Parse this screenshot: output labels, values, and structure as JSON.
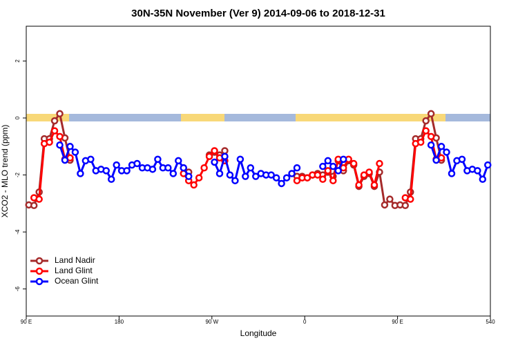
{
  "chart_data": {
    "type": "line",
    "title": "30N-35N November (Ver 9)   2014-09-06 to 2018-12-31",
    "xlabel": "Longitude",
    "ylabel": "XCO2 - MLO trend (ppm)",
    "x": [
      92.5,
      97.5,
      102.5,
      107.5,
      112.5,
      117.5,
      122.5,
      127.5,
      132.5,
      137.5,
      142.5,
      147.5,
      152.5,
      157.5,
      162.5,
      167.5,
      172.5,
      177.5,
      182.5,
      187.5,
      192.5,
      197.5,
      202.5,
      207.5,
      212.5,
      217.5,
      222.5,
      227.5,
      232.5,
      237.5,
      242.5,
      247.5,
      252.5,
      257.5,
      262.5,
      267.5,
      272.5,
      277.5,
      282.5,
      287.5,
      292.5,
      297.5,
      302.5,
      307.5,
      312.5,
      317.5,
      322.5,
      327.5,
      332.5,
      337.5,
      342.5,
      347.5,
      352.5,
      357.5,
      362.5,
      367.5,
      372.5,
      377.5,
      382.5,
      387.5,
      392.5,
      397.5,
      402.5,
      407.5,
      412.5,
      417.5,
      422.5,
      427.5,
      432.5,
      437.5,
      442.5,
      447.5,
      452.5,
      457.5,
      462.5,
      467.5,
      472.5,
      477.5,
      482.5,
      487.5,
      492.5,
      497.5,
      502.5,
      507.5,
      512.5,
      517.5,
      522.5,
      527.5,
      532.5,
      537.5
    ],
    "series": [
      {
        "name": "Land Nadir",
        "color": "#a52a2a",
        "values": [
          -3.05,
          -3.07,
          -2.6,
          -0.73,
          -0.73,
          -0.1,
          0.15,
          -0.7,
          -1.48,
          null,
          null,
          null,
          null,
          null,
          null,
          null,
          null,
          null,
          null,
          null,
          null,
          null,
          null,
          null,
          null,
          null,
          null,
          null,
          null,
          null,
          -1.75,
          -1.9,
          null,
          null,
          null,
          -1.3,
          -1.2,
          -1.3,
          -1.15,
          null,
          null,
          null,
          null,
          null,
          null,
          null,
          null,
          null,
          null,
          null,
          null,
          null,
          -2.05,
          -2.05,
          -2.1,
          -2.0,
          -1.95,
          -2.0,
          -1.9,
          -2.05,
          -1.5,
          -1.85,
          -1.5,
          -1.65,
          -2.4,
          -2.05,
          -1.95,
          -2.4,
          -1.9,
          -3.05,
          -2.85,
          -3.07,
          -3.05,
          -3.07,
          -2.6,
          -0.73,
          -0.73,
          -0.1,
          0.15,
          -0.7,
          -1.48,
          null,
          null,
          null,
          null,
          null,
          null,
          null,
          null,
          null
        ]
      },
      {
        "name": "Land Glint",
        "color": "#ff0000",
        "values": [
          null,
          -2.8,
          -2.85,
          -0.9,
          -0.85,
          -0.45,
          -0.65,
          -1.45,
          -1.4,
          null,
          null,
          null,
          null,
          null,
          null,
          null,
          null,
          null,
          null,
          null,
          null,
          null,
          null,
          null,
          null,
          null,
          null,
          null,
          null,
          null,
          -1.95,
          -2.2,
          -2.35,
          -2.1,
          -1.75,
          -1.35,
          -1.15,
          -1.4,
          -1.5,
          null,
          null,
          null,
          null,
          null,
          null,
          null,
          null,
          null,
          null,
          null,
          null,
          null,
          -2.2,
          -2.1,
          -2.1,
          -2.0,
          -2.0,
          -2.15,
          -1.85,
          -2.2,
          -1.45,
          -1.75,
          -1.45,
          -1.6,
          -2.35,
          -2.0,
          -1.9,
          -2.35,
          -1.6,
          null,
          null,
          null,
          null,
          -2.8,
          -2.85,
          -0.9,
          -0.85,
          -0.45,
          -0.65,
          -1.45,
          -1.4,
          null,
          null,
          null,
          null,
          null,
          null,
          null,
          null,
          null
        ]
      },
      {
        "name": "Ocean Glint",
        "color": "#0000ff",
        "values": [
          null,
          null,
          null,
          null,
          null,
          null,
          -0.95,
          -1.48,
          -1.0,
          -1.2,
          -1.95,
          -1.5,
          -1.45,
          -1.85,
          -1.8,
          -1.85,
          -2.15,
          -1.65,
          -1.85,
          -1.85,
          -1.65,
          -1.6,
          -1.75,
          -1.75,
          -1.8,
          -1.45,
          -1.75,
          -1.75,
          -1.95,
          -1.5,
          -1.75,
          -2.05,
          null,
          null,
          null,
          null,
          -1.55,
          -1.95,
          -1.35,
          -2.0,
          -2.2,
          -1.45,
          -2.05,
          -1.75,
          -2.05,
          -1.95,
          -2.0,
          -2.0,
          -2.1,
          -2.3,
          -2.1,
          -1.95,
          -1.75,
          null,
          null,
          null,
          null,
          -1.7,
          -1.5,
          -1.7,
          -1.85,
          -1.45,
          null,
          null,
          null,
          null,
          null,
          null,
          null,
          null,
          null,
          null,
          null,
          null,
          null,
          null,
          null,
          null,
          -0.95,
          -1.48,
          -1.0,
          -1.2,
          -1.95,
          -1.5,
          -1.45,
          -1.85,
          -1.8,
          -1.85,
          -2.15,
          -1.65
        ]
      }
    ],
    "xlim": [
      90,
      540
    ],
    "ylim": [
      -6.95,
      3.22
    ],
    "xticks": [
      {
        "value": 90,
        "label": "90 E"
      },
      180,
      {
        "value": 270,
        "label": "90 W"
      },
      {
        "value": 360,
        "label": "0"
      },
      {
        "value": 450,
        "label": "90 E"
      },
      540
    ],
    "yticks": [
      -6,
      -4,
      -2,
      0,
      2
    ],
    "legend": "bottomleft"
  }
}
